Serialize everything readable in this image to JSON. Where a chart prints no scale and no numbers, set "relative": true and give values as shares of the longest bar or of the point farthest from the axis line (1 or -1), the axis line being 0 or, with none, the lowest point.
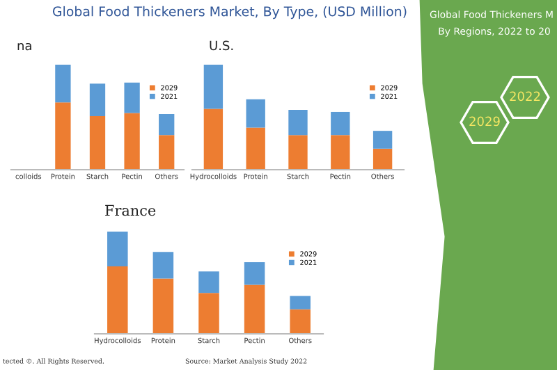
{
  "chart_data": [
    {
      "type": "other",
      "title": "Global Food Thickeners Market, By Type, (USD Million)",
      "annotations": [
        "tected ©. All Rights Reserved.",
        "Source: Market Analysis Study 2022"
      ]
    },
    {
      "type": "bar",
      "title": "na",
      "relative": true,
      "stacked": true,
      "legend": "right",
      "tick_labels": "x",
      "categories": [
        "colloids",
        "Protein",
        "Starch",
        "Pectin",
        "Others"
      ],
      "series": [
        {
          "name": "2029",
          "color": "#ed7d31",
          "values": [
            null,
            0.64,
            0.51,
            0.54,
            0.33
          ]
        },
        {
          "name": "2021",
          "color": "#5b9bd5",
          "values": [
            null,
            0.36,
            0.31,
            0.29,
            0.2
          ]
        }
      ]
    },
    {
      "type": "bar",
      "title": "U.S.",
      "relative": true,
      "stacked": true,
      "legend": "right",
      "tick_labels": "x",
      "categories": [
        "Hydrocolloids",
        "Protein",
        "Starch",
        "Pectin",
        "Others"
      ],
      "series": [
        {
          "name": "2029",
          "color": "#ed7d31",
          "values": [
            0.58,
            0.4,
            0.33,
            0.33,
            0.2
          ]
        },
        {
          "name": "2021",
          "color": "#5b9bd5",
          "values": [
            0.42,
            0.27,
            0.24,
            0.22,
            0.17
          ]
        }
      ]
    },
    {
      "type": "bar",
      "title": "France",
      "relative": true,
      "stacked": true,
      "legend": "right",
      "tick_labels": "x",
      "categories": [
        "Hydrocolloids",
        "Protein",
        "Starch",
        "Pectin",
        "Others"
      ],
      "series": [
        {
          "name": "2029",
          "color": "#ed7d31",
          "values": [
            0.66,
            0.54,
            0.4,
            0.48,
            0.24
          ]
        },
        {
          "name": "2021",
          "color": "#5b9bd5",
          "values": [
            0.34,
            0.26,
            0.21,
            0.22,
            0.13
          ]
        }
      ]
    },
    {
      "type": "other",
      "title": "Global Food Thickeners M",
      "subtitle": "By Regions, 2022 to 20",
      "annotations": [
        "2029",
        "2022"
      ]
    }
  ]
}
